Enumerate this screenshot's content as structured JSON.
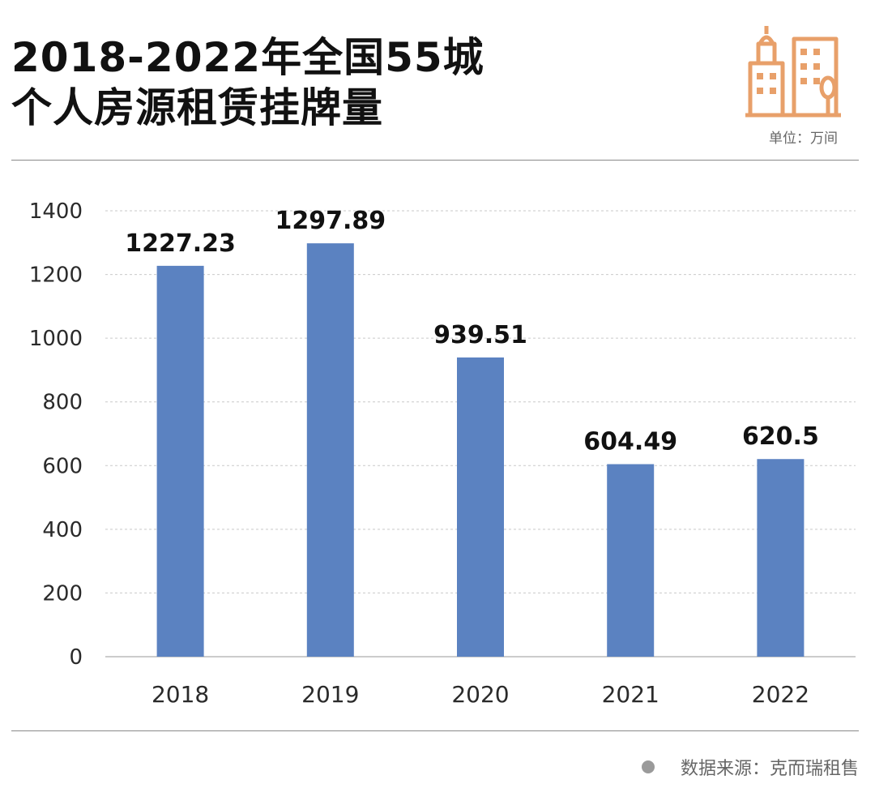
{
  "header": {
    "title_line1": "2018-2022年全国55城",
    "title_line2": "个人房源租赁挂牌量",
    "unit": "单位：万间"
  },
  "footer": {
    "source": "数据来源：克而瑞租售"
  },
  "colors": {
    "bar": "#5b82c1",
    "icon": "#e8a06a",
    "grid": "#c9c9c9"
  },
  "chart_data": {
    "type": "bar",
    "categories": [
      "2018",
      "2019",
      "2020",
      "2021",
      "2022"
    ],
    "values": [
      1227.23,
      1297.89,
      939.51,
      604.49,
      620.5
    ],
    "labels": [
      "1227.23",
      "1297.89",
      "939.51",
      "604.49",
      "620.5"
    ],
    "yticks": [
      0,
      200,
      400,
      600,
      800,
      1000,
      1200,
      1400
    ],
    "ylim": [
      0,
      1400
    ],
    "grid": true,
    "title": "2018-2022年全国55城个人房源租赁挂牌量",
    "ylabel": "单位：万间",
    "xlabel": ""
  }
}
